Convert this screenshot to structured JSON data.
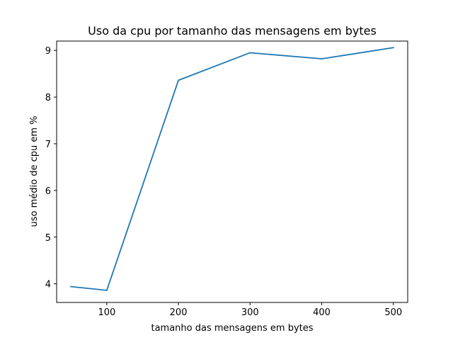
{
  "chart_data": {
    "type": "line",
    "title": "Uso da cpu por tamanho das mensagens em bytes",
    "xlabel": "tamanho das mensagens em bytes",
    "ylabel": "uso médio de cpu em %",
    "x": [
      50,
      100,
      200,
      300,
      400,
      500
    ],
    "series": [
      {
        "values": [
          3.94,
          3.86,
          8.36,
          8.95,
          8.82,
          9.06
        ],
        "color": "#1f77b4"
      }
    ],
    "xlim": [
      30,
      520
    ],
    "ylim": [
      3.6,
      9.2
    ],
    "xticks": [
      100,
      200,
      300,
      400,
      500
    ],
    "xtick_labels": [
      "100",
      "200",
      "300",
      "400",
      "500"
    ],
    "yticks": [
      4,
      5,
      6,
      7,
      8,
      9
    ],
    "ytick_labels": [
      "4",
      "5",
      "6",
      "7",
      "8",
      "9"
    ],
    "grid": false,
    "legend": "none"
  }
}
